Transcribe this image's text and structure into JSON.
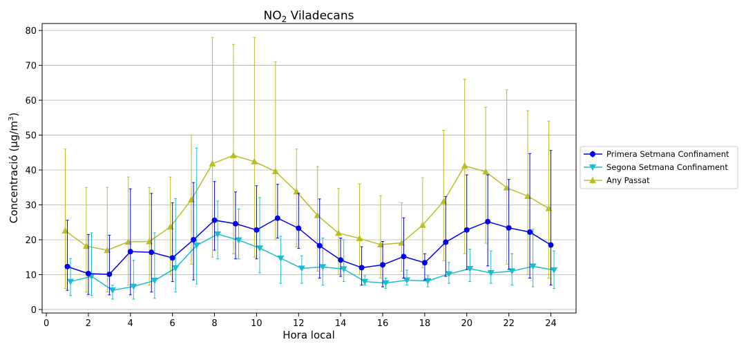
{
  "chart_data": {
    "type": "line",
    "title": "NO₂ Viladecans",
    "title_main": "NO",
    "title_sub": "2",
    "title_rest": " Viladecans",
    "xlabel": "Hora local",
    "ylabel": "Concentració (µg/m³)",
    "ylabel_main": "Concentració (µg/m",
    "ylabel_sup": "3",
    "ylabel_end": ")",
    "xlim": [
      -0.2,
      25.2
    ],
    "ylim": [
      -1,
      82
    ],
    "x_ticks": [
      0,
      2,
      4,
      6,
      8,
      10,
      12,
      14,
      16,
      18,
      20,
      22,
      24
    ],
    "y_ticks": [
      0,
      10,
      20,
      30,
      40,
      50,
      60,
      70,
      80
    ],
    "grid": "horizontal",
    "legend_position": "right",
    "x": [
      1,
      2,
      3,
      4,
      5,
      6,
      7,
      8,
      9,
      10,
      11,
      12,
      13,
      14,
      15,
      16,
      17,
      18,
      19,
      20,
      21,
      22,
      23,
      24
    ],
    "series": [
      {
        "name": "Primera Setmana Confinament",
        "color": "#0000ee",
        "marker": "circle",
        "values": [
          12.3,
          10.3,
          10.1,
          16.6,
          16.4,
          14.8,
          20.0,
          25.6,
          24.6,
          22.8,
          26.2,
          23.3,
          18.3,
          14.2,
          12.0,
          12.8,
          15.2,
          13.4,
          19.3,
          22.8,
          25.2,
          23.4,
          22.2,
          18.5
        ],
        "err_low": [
          5.5,
          4.3,
          4.2,
          4.2,
          5.0,
          8.0,
          8.5,
          17.0,
          14.5,
          14.5,
          20.5,
          17.5,
          9.0,
          9.5,
          7.0,
          6.5,
          9.0,
          8.5,
          9.5,
          11.5,
          12.5,
          11.5,
          9.0,
          7.0
        ],
        "err_high": [
          25.6,
          21.5,
          21.3,
          34.6,
          33.3,
          30.6,
          36.4,
          36.7,
          33.7,
          35.5,
          35.9,
          33.3,
          31.7,
          20.5,
          18.0,
          19.5,
          26.3,
          16.0,
          32.4,
          38.6,
          38.6,
          37.3,
          44.7,
          45.6
        ]
      },
      {
        "name": "Segona Setmana Confinament",
        "color": "#17becf",
        "marker": "triangle-down",
        "values": [
          8.0,
          9.5,
          5.5,
          6.6,
          8.3,
          11.9,
          18.4,
          21.6,
          19.9,
          17.6,
          14.7,
          11.8,
          12.2,
          11.6,
          8.0,
          7.6,
          8.4,
          8.2,
          10.2,
          11.7,
          10.5,
          11.0,
          12.4,
          11.3
        ],
        "err_low": [
          4.0,
          4.0,
          3.0,
          3.0,
          3.2,
          5.0,
          7.3,
          14.5,
          14.5,
          10.5,
          7.5,
          7.5,
          7.0,
          8.0,
          7.0,
          6.0,
          7.0,
          6.5,
          7.5,
          8.0,
          7.5,
          7.0,
          6.5,
          6.0
        ],
        "err_high": [
          14.6,
          22.0,
          7.0,
          14.1,
          22.0,
          31.8,
          46.3,
          31.1,
          28.8,
          32.1,
          21.0,
          15.4,
          20.5,
          20.0,
          9.7,
          9.0,
          11.3,
          9.7,
          13.5,
          17.3,
          16.8,
          16.0,
          23.0,
          16.8
        ]
      },
      {
        "name": "Any Passat",
        "color": "#bcbd22",
        "marker": "triangle-up",
        "values": [
          22.6,
          18.2,
          17.0,
          19.4,
          19.5,
          23.7,
          31.5,
          41.8,
          44.2,
          42.4,
          39.6,
          33.8,
          27.0,
          21.9,
          20.4,
          18.6,
          19.1,
          24.2,
          31.0,
          41.2,
          39.5,
          34.9,
          32.5,
          29.0
        ],
        "err_low": [
          6.0,
          5.0,
          5.0,
          7.0,
          7.0,
          10.0,
          13.0,
          15.0,
          16.0,
          15.0,
          20.0,
          18.0,
          11.0,
          10.0,
          10.0,
          9.0,
          11.0,
          12.0,
          14.0,
          16.0,
          19.0,
          13.0,
          10.0,
          9.0
        ],
        "err_high": [
          46.0,
          35.0,
          35.0,
          38.0,
          35.0,
          38.0,
          50.0,
          78.0,
          76.0,
          78.0,
          71.0,
          46.0,
          41.0,
          34.7,
          36.0,
          32.6,
          30.6,
          37.8,
          51.4,
          66.0,
          58.0,
          63.0,
          57.0,
          54.0
        ]
      }
    ]
  }
}
